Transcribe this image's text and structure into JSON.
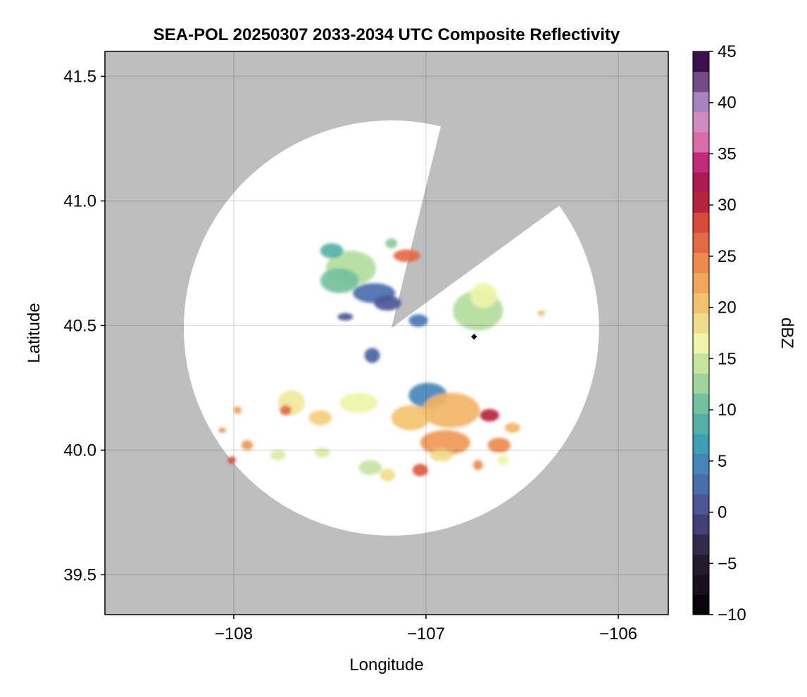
{
  "chart_data": {
    "type": "heatmap",
    "title": "SEA-POL 20250307 2033-2034 UTC Composite Reflectivity",
    "xlabel": "Longitude",
    "ylabel": "Latitude",
    "xlim": [
      -108.67,
      -105.74
    ],
    "ylim": [
      39.34,
      41.6
    ],
    "grid": true,
    "x_ticks": [
      {
        "value": -108,
        "label": "−108"
      },
      {
        "value": -107,
        "label": "−107"
      },
      {
        "value": -106,
        "label": "−106"
      }
    ],
    "y_ticks": [
      {
        "value": 39.5,
        "label": "39.5"
      },
      {
        "value": 40.0,
        "label": "40.0"
      },
      {
        "value": 40.5,
        "label": "40.5"
      },
      {
        "value": 41.0,
        "label": "41.0"
      },
      {
        "value": 41.5,
        "label": "41.5"
      }
    ],
    "radar_site": {
      "lon": -107.18,
      "lat": 40.49
    },
    "coverage_radius_deg": 1.08,
    "blocked_sector_lonlat": [
      [
        -107.18,
        40.49
      ],
      [
        -106.85,
        41.53
      ],
      [
        -106.06,
        41.12
      ]
    ],
    "marker": {
      "lon": -106.75,
      "lat": 40.455
    },
    "colorbar": {
      "label": "dBZ",
      "range": [
        -10,
        45
      ],
      "step": 2,
      "ticks": [
        {
          "value": -10,
          "label": "−10"
        },
        {
          "value": -5,
          "label": "−5"
        },
        {
          "value": 0,
          "label": "0"
        },
        {
          "value": 5,
          "label": "5"
        },
        {
          "value": 10,
          "label": "10"
        },
        {
          "value": 15,
          "label": "15"
        },
        {
          "value": 20,
          "label": "20"
        },
        {
          "value": 25,
          "label": "25"
        },
        {
          "value": 30,
          "label": "30"
        },
        {
          "value": 35,
          "label": "35"
        },
        {
          "value": 40,
          "label": "40"
        },
        {
          "value": 45,
          "label": "45"
        }
      ],
      "stops": [
        {
          "value": -10,
          "color": "#000000"
        },
        {
          "value": -4,
          "color": "#2a2035"
        },
        {
          "value": 0,
          "color": "#4b4a8c"
        },
        {
          "value": 4,
          "color": "#4a78b8"
        },
        {
          "value": 7,
          "color": "#3f9fb5"
        },
        {
          "value": 10,
          "color": "#5fb8a0"
        },
        {
          "value": 13,
          "color": "#9fd39a"
        },
        {
          "value": 17,
          "color": "#eef5a8"
        },
        {
          "value": 21,
          "color": "#f3c26e"
        },
        {
          "value": 25,
          "color": "#ee8a4e"
        },
        {
          "value": 29,
          "color": "#d8493a"
        },
        {
          "value": 32,
          "color": "#a4123e"
        },
        {
          "value": 35,
          "color": "#c02a78"
        },
        {
          "value": 38,
          "color": "#e58fc2"
        },
        {
          "value": 41,
          "color": "#a982c0"
        },
        {
          "value": 45,
          "color": "#3d0f4b"
        }
      ]
    },
    "echo_cells": [
      {
        "lon": -107.39,
        "lat": 40.73,
        "rlon": 0.13,
        "rlat": 0.07,
        "dbz": 14
      },
      {
        "lon": -107.45,
        "lat": 40.68,
        "rlon": 0.1,
        "rlat": 0.05,
        "dbz": 11
      },
      {
        "lon": -107.27,
        "lat": 40.63,
        "rlon": 0.11,
        "rlat": 0.04,
        "dbz": 3
      },
      {
        "lon": -107.2,
        "lat": 40.59,
        "rlon": 0.07,
        "rlat": 0.03,
        "dbz": 1
      },
      {
        "lon": -107.49,
        "lat": 40.8,
        "rlon": 0.06,
        "rlat": 0.03,
        "dbz": 9
      },
      {
        "lon": -107.1,
        "lat": 40.78,
        "rlon": 0.07,
        "rlat": 0.025,
        "dbz": 27
      },
      {
        "lon": -107.18,
        "lat": 40.83,
        "rlon": 0.03,
        "rlat": 0.02,
        "dbz": 12
      },
      {
        "lon": -107.42,
        "lat": 40.535,
        "rlon": 0.04,
        "rlat": 0.015,
        "dbz": 1
      },
      {
        "lon": -107.04,
        "lat": 40.52,
        "rlon": 0.05,
        "rlat": 0.025,
        "dbz": 4
      },
      {
        "lon": -106.73,
        "lat": 40.56,
        "rlon": 0.13,
        "rlat": 0.08,
        "dbz": 14
      },
      {
        "lon": -106.7,
        "lat": 40.62,
        "rlon": 0.07,
        "rlat": 0.05,
        "dbz": 17
      },
      {
        "lon": -106.4,
        "lat": 40.55,
        "rlon": 0.02,
        "rlat": 0.01,
        "dbz": 22
      },
      {
        "lon": -107.28,
        "lat": 40.38,
        "rlon": 0.04,
        "rlat": 0.03,
        "dbz": 2
      },
      {
        "lon": -106.99,
        "lat": 40.22,
        "rlon": 0.1,
        "rlat": 0.05,
        "dbz": 5
      },
      {
        "lon": -106.87,
        "lat": 40.16,
        "rlon": 0.15,
        "rlat": 0.07,
        "dbz": 22
      },
      {
        "lon": -106.9,
        "lat": 40.03,
        "rlon": 0.13,
        "rlat": 0.05,
        "dbz": 24
      },
      {
        "lon": -107.08,
        "lat": 40.13,
        "rlon": 0.1,
        "rlat": 0.05,
        "dbz": 21
      },
      {
        "lon": -106.67,
        "lat": 40.14,
        "rlon": 0.05,
        "rlat": 0.025,
        "dbz": 31
      },
      {
        "lon": -106.62,
        "lat": 40.02,
        "rlon": 0.06,
        "rlat": 0.03,
        "dbz": 25
      },
      {
        "lon": -106.55,
        "lat": 40.09,
        "rlon": 0.04,
        "rlat": 0.02,
        "dbz": 22
      },
      {
        "lon": -107.03,
        "lat": 39.92,
        "rlon": 0.04,
        "rlat": 0.025,
        "dbz": 28
      },
      {
        "lon": -106.73,
        "lat": 39.94,
        "rlon": 0.025,
        "rlat": 0.02,
        "dbz": 25
      },
      {
        "lon": -107.35,
        "lat": 40.19,
        "rlon": 0.1,
        "rlat": 0.04,
        "dbz": 17
      },
      {
        "lon": -107.55,
        "lat": 40.13,
        "rlon": 0.06,
        "rlat": 0.03,
        "dbz": 20
      },
      {
        "lon": -107.7,
        "lat": 40.19,
        "rlon": 0.07,
        "rlat": 0.05,
        "dbz": 18
      },
      {
        "lon": -107.73,
        "lat": 40.16,
        "rlon": 0.03,
        "rlat": 0.02,
        "dbz": 27
      },
      {
        "lon": -107.98,
        "lat": 40.16,
        "rlon": 0.02,
        "rlat": 0.015,
        "dbz": 24
      },
      {
        "lon": -108.06,
        "lat": 40.08,
        "rlon": 0.02,
        "rlat": 0.01,
        "dbz": 25
      },
      {
        "lon": -107.93,
        "lat": 40.02,
        "rlon": 0.03,
        "rlat": 0.02,
        "dbz": 24
      },
      {
        "lon": -108.01,
        "lat": 39.96,
        "rlon": 0.02,
        "rlat": 0.015,
        "dbz": 29
      },
      {
        "lon": -107.77,
        "lat": 39.98,
        "rlon": 0.04,
        "rlat": 0.02,
        "dbz": 16
      },
      {
        "lon": -107.54,
        "lat": 39.99,
        "rlon": 0.04,
        "rlat": 0.02,
        "dbz": 16
      },
      {
        "lon": -107.29,
        "lat": 39.93,
        "rlon": 0.06,
        "rlat": 0.03,
        "dbz": 15
      },
      {
        "lon": -107.2,
        "lat": 39.9,
        "rlon": 0.04,
        "rlat": 0.025,
        "dbz": 19
      },
      {
        "lon": -106.92,
        "lat": 39.98,
        "rlon": 0.06,
        "rlat": 0.025,
        "dbz": 19
      },
      {
        "lon": -106.6,
        "lat": 39.96,
        "rlon": 0.03,
        "rlat": 0.02,
        "dbz": 17
      }
    ]
  }
}
